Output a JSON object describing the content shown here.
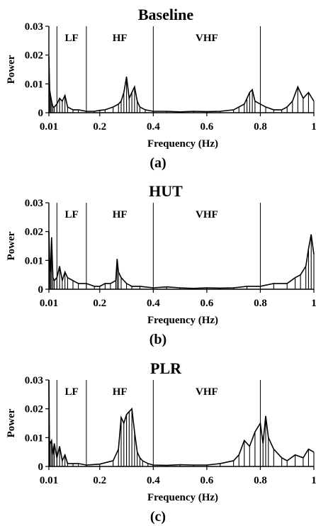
{
  "chart_data": [
    {
      "type": "line",
      "title": "Baseline",
      "subplot_label": "(a)",
      "xlabel": "Frequency (Hz)",
      "ylabel": "Power",
      "xlim": [
        0.01,
        1
      ],
      "ylim": [
        0,
        0.03
      ],
      "x_ticks": [
        "0.01",
        "0.2",
        "0.4",
        "0.6",
        "0.8",
        "1"
      ],
      "y_ticks": [
        "0",
        "0.01",
        "0.02",
        "0.03"
      ],
      "band_boundaries_hz": [
        0.04,
        0.15,
        0.4,
        0.8
      ],
      "band_labels": [
        "LF",
        "HF",
        "VHF"
      ],
      "series": [
        {
          "x": [
            0.01,
            0.013,
            0.016,
            0.02,
            0.025,
            0.03,
            0.04,
            0.05,
            0.06,
            0.07,
            0.08,
            0.1,
            0.12,
            0.15,
            0.18,
            0.2,
            0.22,
            0.25,
            0.27,
            0.28,
            0.29,
            0.3,
            0.31,
            0.32,
            0.33,
            0.34,
            0.35,
            0.37,
            0.4,
            0.45,
            0.5,
            0.55,
            0.6,
            0.65,
            0.7,
            0.72,
            0.74,
            0.75,
            0.76,
            0.77,
            0.78,
            0.8,
            0.82,
            0.85,
            0.88,
            0.9,
            0.92,
            0.94,
            0.96,
            0.98,
            1
          ],
          "values": [
            0.0195,
            0.008,
            0.006,
            0.004,
            0.002,
            0.002,
            0.003,
            0.005,
            0.004,
            0.006,
            0.002,
            0.001,
            0.001,
            0.0005,
            0.0005,
            0.0008,
            0.001,
            0.002,
            0.003,
            0.004,
            0.007,
            0.0125,
            0.005,
            0.007,
            0.009,
            0.004,
            0.002,
            0.001,
            0.0005,
            0.0005,
            0.0003,
            0.0005,
            0.0004,
            0.0005,
            0.001,
            0.002,
            0.003,
            0.005,
            0.007,
            0.008,
            0.004,
            0.003,
            0.002,
            0.001,
            0.001,
            0.002,
            0.004,
            0.009,
            0.005,
            0.007,
            0.004
          ]
        }
      ]
    },
    {
      "type": "line",
      "title": "HUT",
      "subplot_label": "(b)",
      "xlabel": "Frequency (Hz)",
      "ylabel": "Power",
      "xlim": [
        0.01,
        1
      ],
      "ylim": [
        0,
        0.03
      ],
      "x_ticks": [
        "0.01",
        "0.2",
        "0.4",
        "0.6",
        "0.8",
        "1"
      ],
      "y_ticks": [
        "0",
        "0.01",
        "0.02",
        "0.03"
      ],
      "band_boundaries_hz": [
        0.04,
        0.15,
        0.4,
        0.8
      ],
      "band_labels": [
        "LF",
        "HF",
        "VHF"
      ],
      "series": [
        {
          "x": [
            0.01,
            0.013,
            0.016,
            0.02,
            0.025,
            0.03,
            0.04,
            0.05,
            0.06,
            0.07,
            0.08,
            0.1,
            0.12,
            0.15,
            0.18,
            0.2,
            0.22,
            0.24,
            0.26,
            0.265,
            0.27,
            0.28,
            0.3,
            0.32,
            0.35,
            0.4,
            0.45,
            0.5,
            0.55,
            0.6,
            0.65,
            0.7,
            0.75,
            0.8,
            0.85,
            0.9,
            0.93,
            0.95,
            0.97,
            0.98,
            0.99,
            1
          ],
          "values": [
            0.02,
            0.01,
            0.006,
            0.018,
            0.004,
            0.003,
            0.004,
            0.008,
            0.003,
            0.006,
            0.004,
            0.003,
            0.002,
            0.002,
            0.001,
            0.001,
            0.002,
            0.002,
            0.003,
            0.0105,
            0.006,
            0.004,
            0.002,
            0.001,
            0.001,
            0.0005,
            0.0008,
            0.0005,
            0.0003,
            0.0005,
            0.0004,
            0.0005,
            0.001,
            0.001,
            0.002,
            0.002,
            0.004,
            0.005,
            0.008,
            0.014,
            0.019,
            0.012
          ]
        }
      ]
    },
    {
      "type": "line",
      "title": "PLR",
      "subplot_label": "(c)",
      "xlabel": "Frequency (Hz)",
      "ylabel": "Power",
      "xlim": [
        0.01,
        1
      ],
      "ylim": [
        0,
        0.03
      ],
      "x_ticks": [
        "0.01",
        "0.2",
        "0.4",
        "0.6",
        "0.8",
        "1"
      ],
      "y_ticks": [
        "0",
        "0.01",
        "0.02",
        "0.03"
      ],
      "band_boundaries_hz": [
        0.04,
        0.15,
        0.4,
        0.8
      ],
      "band_labels": [
        "LF",
        "HF",
        "VHF"
      ],
      "series": [
        {
          "x": [
            0.01,
            0.012,
            0.015,
            0.02,
            0.025,
            0.03,
            0.04,
            0.05,
            0.06,
            0.07,
            0.08,
            0.1,
            0.12,
            0.15,
            0.2,
            0.25,
            0.27,
            0.28,
            0.29,
            0.3,
            0.31,
            0.32,
            0.33,
            0.34,
            0.35,
            0.36,
            0.38,
            0.4,
            0.45,
            0.5,
            0.55,
            0.6,
            0.65,
            0.7,
            0.72,
            0.74,
            0.76,
            0.78,
            0.8,
            0.81,
            0.82,
            0.83,
            0.85,
            0.88,
            0.9,
            0.93,
            0.96,
            0.98,
            1
          ],
          "values": [
            0.03,
            0.009,
            0.008,
            0.009,
            0.004,
            0.008,
            0.003,
            0.007,
            0.002,
            0.004,
            0.001,
            0.001,
            0.001,
            0.0005,
            0.0008,
            0.002,
            0.006,
            0.017,
            0.015,
            0.018,
            0.019,
            0.02,
            0.012,
            0.005,
            0.003,
            0.002,
            0.001,
            0.0005,
            0.0004,
            0.0006,
            0.0005,
            0.0005,
            0.001,
            0.002,
            0.004,
            0.009,
            0.007,
            0.012,
            0.015,
            0.008,
            0.0175,
            0.01,
            0.006,
            0.003,
            0.002,
            0.004,
            0.003,
            0.006,
            0.005
          ]
        }
      ]
    }
  ]
}
